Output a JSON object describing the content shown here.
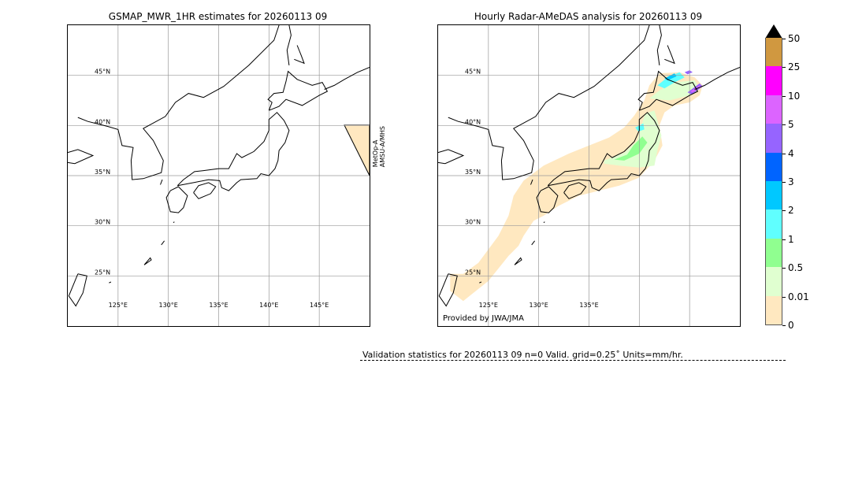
{
  "left_panel": {
    "title": "GSMAP_MWR_1HR estimates for 20260113 09",
    "side_label_1": "MetOp-A",
    "side_label_2": "AMSU-A/MHS"
  },
  "right_panel": {
    "title": "Hourly Radar-AMeDAS analysis for 20260113 09",
    "credit": "Provided by JWA/JMA"
  },
  "validation": "Validation statistics for 20260113 09  n=0 Valid. grid=0.25˚ Units=mm/hr.",
  "chart_data": {
    "type": "heatmap",
    "lat_ticks": [
      {
        "v": 45,
        "label": "45°N"
      },
      {
        "v": 40,
        "label": "40°N"
      },
      {
        "v": 35,
        "label": "35°N"
      },
      {
        "v": 30,
        "label": "30°N"
      },
      {
        "v": 25,
        "label": "25°N"
      }
    ],
    "lon_ticks_left": [
      {
        "v": 125,
        "label": "125°E"
      },
      {
        "v": 130,
        "label": "130°E"
      },
      {
        "v": 135,
        "label": "135°E"
      },
      {
        "v": 140,
        "label": "140°E"
      },
      {
        "v": 145,
        "label": "145°E"
      }
    ],
    "lon_ticks_right": [
      {
        "v": 125,
        "label": "125°E"
      },
      {
        "v": 130,
        "label": "130°E"
      },
      {
        "v": 135,
        "label": "135°E"
      }
    ],
    "extent": {
      "lon": [
        120,
        150
      ],
      "lat": [
        20,
        50
      ]
    },
    "colorbar": {
      "labels": [
        "0",
        "0.01",
        "0.5",
        "1",
        "2",
        "3",
        "4",
        "5",
        "10",
        "25",
        "50"
      ],
      "colors": [
        "#ffe8c0",
        "#e0ffd0",
        "#90ff90",
        "#60ffff",
        "#00c8ff",
        "#0064ff",
        "#9664ff",
        "#dc64ff",
        "#ff00ff",
        "#d09840"
      ],
      "extend_color": "#000000"
    }
  }
}
